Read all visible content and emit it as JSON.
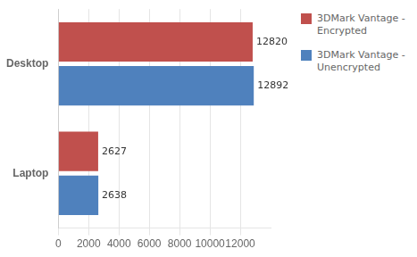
{
  "chart_data": {
    "type": "bar",
    "orientation": "horizontal",
    "categories": [
      "Desktop",
      "Laptop"
    ],
    "series": [
      {
        "name": "3DMark Vantage -\nEncrypted",
        "color": "#c0504d",
        "values": [
          12820,
          2627
        ]
      },
      {
        "name": "3DMark Vantage -\nUnencrypted",
        "color": "#4f81bd",
        "values": [
          12892,
          2638
        ]
      }
    ],
    "xlim": [
      0,
      14000
    ],
    "xticks": [
      0,
      2000,
      4000,
      6000,
      8000,
      10000,
      12000
    ],
    "grid": true,
    "data_labels": true,
    "legend": "right"
  }
}
